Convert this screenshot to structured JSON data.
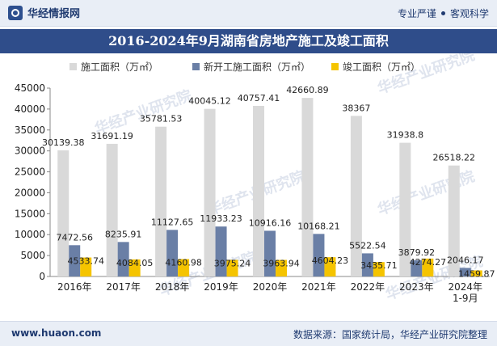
{
  "header": {
    "brand": "华经情报网",
    "slogan_left": "专业严谨",
    "slogan_right": "客观科学"
  },
  "title": "2016-2024年9月湖南省房地产施工及竣工面积",
  "footer": {
    "website": "www.huaon.com",
    "source": "数据来源：国家统计局，华经产业研究院整理"
  },
  "colors": {
    "series1": "#d9d9d9",
    "series2": "#6a7fa6",
    "series3": "#f5c400",
    "header_bg": "#e9eef6",
    "title_bg": "#2f4d8a"
  },
  "chart_data": {
    "type": "bar",
    "title": "2016-2024年9月湖南省房地产施工及竣工面积",
    "categories": [
      "2016年",
      "2017年",
      "2018年",
      "2019年",
      "2020年",
      "2021年",
      "2022年",
      "2023年",
      "2024年\n1-9月"
    ],
    "series": [
      {
        "name": "施工面积（万㎡）",
        "values": [
          30139.38,
          31691.19,
          35781.53,
          40045.12,
          40757.41,
          42660.89,
          38367,
          31938.8,
          26518.22
        ]
      },
      {
        "name": "新开工施工面积（万㎡）",
        "values": [
          7472.56,
          8235.91,
          11127.65,
          11933.23,
          10916.16,
          10168.21,
          5522.54,
          3879.92,
          2046.17
        ]
      },
      {
        "name": "竣工面积（万㎡）",
        "values": [
          4533.74,
          4084.05,
          4160.98,
          3975.24,
          3963.94,
          4604.23,
          3435.71,
          4274.27,
          1459.87
        ]
      }
    ],
    "data_labels": [
      [
        "30139.38",
        "31691.19",
        "35781.53",
        "40045.12",
        "40757.41",
        "42660.89",
        "38367",
        "31938.8",
        "26518.22"
      ],
      [
        "7472.56",
        "8235.91",
        "11127.65",
        "11933.23",
        "10916.16",
        "10168.21",
        "5522.54",
        "3879.92",
        "2046.17"
      ],
      [
        "4533.74",
        "4084.05",
        "4160.98",
        "3975.24",
        "3963.94",
        "4604.23",
        "3435.71",
        "4274.27",
        "1459.87"
      ]
    ],
    "y_ticks": [
      "0",
      "5000",
      "10000",
      "15000",
      "20000",
      "25000",
      "30000",
      "35000",
      "40000",
      "45000"
    ],
    "ylim": [
      0,
      45000
    ],
    "legend_position": "top",
    "grid": false,
    "watermark": "华经产业研究院"
  }
}
